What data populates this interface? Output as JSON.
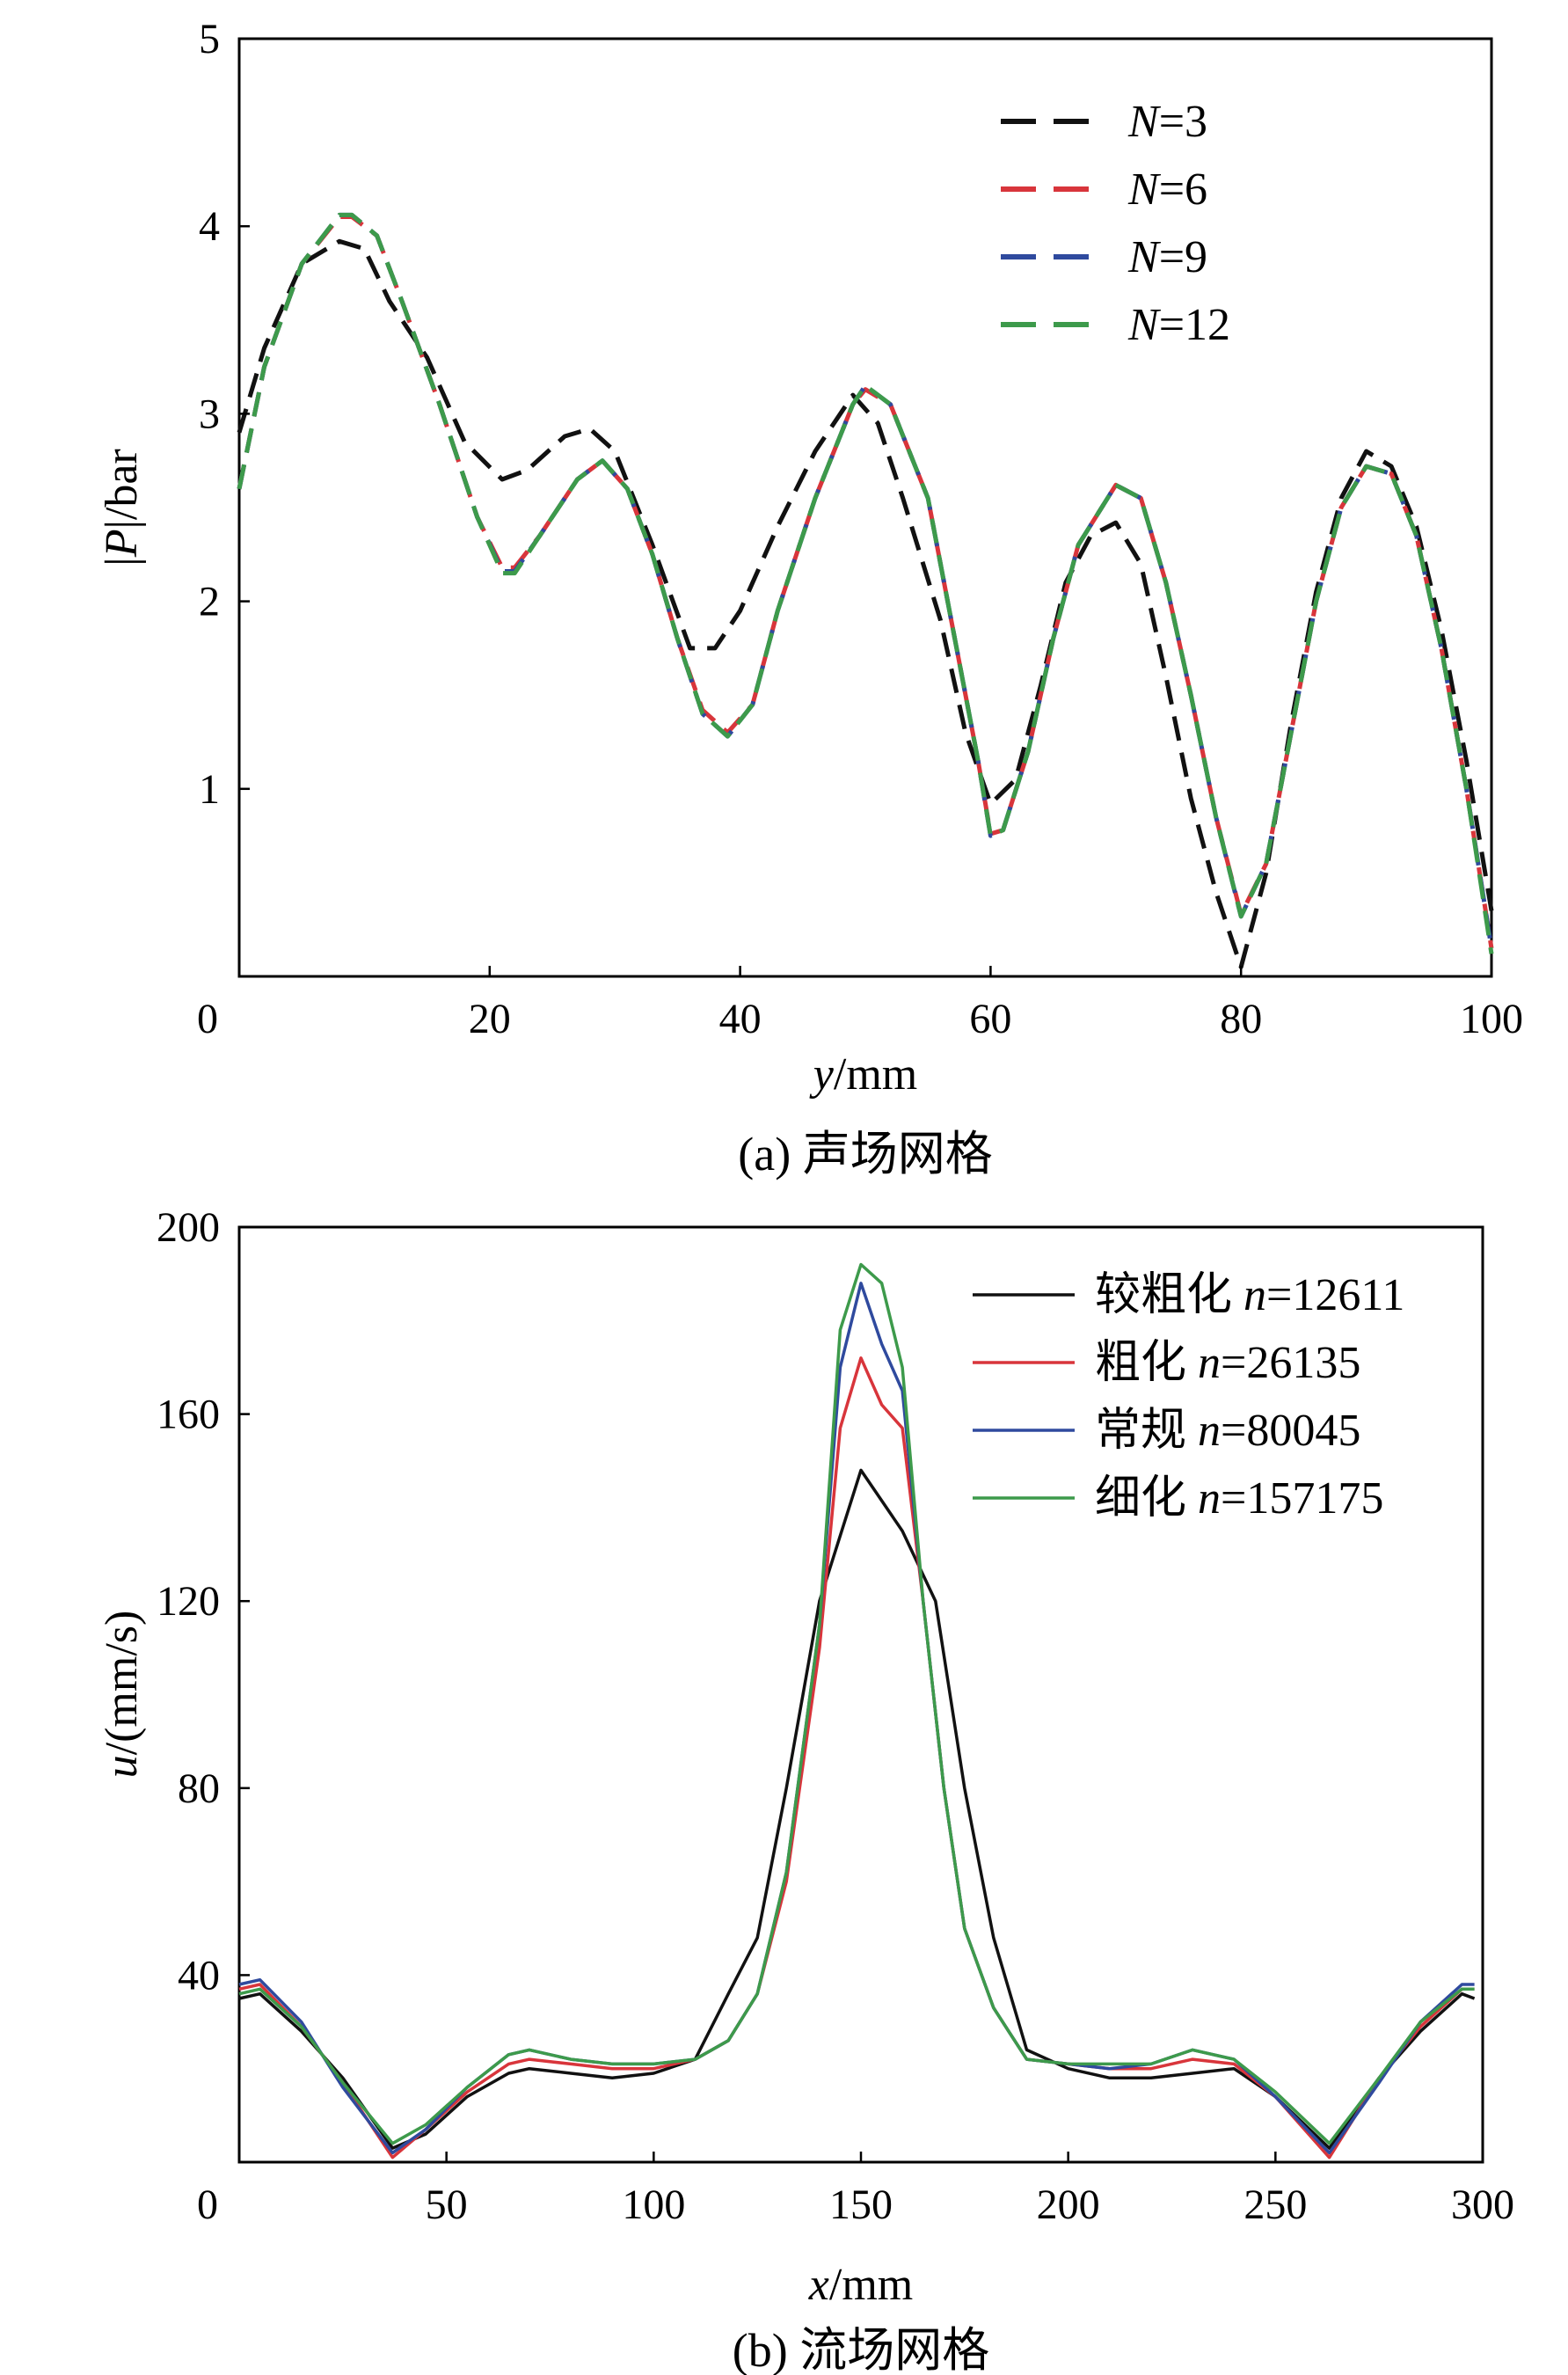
{
  "colors": {
    "black": "#111111",
    "red": "#d8353b",
    "blue": "#2f4a9e",
    "green": "#3d9a4b"
  },
  "chart_data": [
    {
      "type": "line",
      "caption": "(a) 声场网格",
      "ylabel_parts": [
        "|",
        "P",
        "|/bar"
      ],
      "xlabel_parts": [
        "y",
        "/mm"
      ],
      "xlim": [
        0,
        100
      ],
      "ylim": [
        0,
        5
      ],
      "xticks": [
        "0",
        "20",
        "40",
        "60",
        "80",
        "100"
      ],
      "yticks": [
        "1",
        "2",
        "3",
        "4",
        "5"
      ],
      "line_style": "dashed",
      "legend_position": "top-right",
      "series": [
        {
          "name_var": "N",
          "name_rest": "=3",
          "color_key": "black",
          "x": [
            0,
            2,
            5,
            8,
            10,
            12,
            15,
            18,
            21,
            23,
            26,
            28,
            30,
            33,
            36,
            38,
            40,
            43,
            46,
            49,
            51,
            53,
            56,
            58,
            60,
            62,
            64,
            66,
            68,
            70,
            72,
            74,
            76,
            78,
            80,
            82,
            84,
            86,
            88,
            90,
            92,
            94,
            96,
            98,
            100
          ],
          "y": [
            2.9,
            3.35,
            3.8,
            3.92,
            3.88,
            3.6,
            3.3,
            2.85,
            2.65,
            2.7,
            2.88,
            2.92,
            2.8,
            2.3,
            1.75,
            1.75,
            1.95,
            2.4,
            2.8,
            3.1,
            2.95,
            2.55,
            1.9,
            1.3,
            0.92,
            1.05,
            1.55,
            2.1,
            2.35,
            2.42,
            2.2,
            1.6,
            0.95,
            0.45,
            0.05,
            0.55,
            1.35,
            2.05,
            2.55,
            2.8,
            2.72,
            2.4,
            1.85,
            1.15,
            0.35
          ]
        },
        {
          "name_var": "N",
          "name_rest": "=6",
          "color_key": "red",
          "x": [
            0,
            2,
            5,
            8,
            9,
            11,
            13,
            16,
            19,
            21,
            22,
            24,
            27,
            29,
            31,
            33,
            35,
            37,
            39,
            41,
            43,
            46,
            49,
            50,
            52,
            55,
            57,
            59,
            60,
            61,
            63,
            65,
            67,
            70,
            72,
            74,
            76,
            78,
            80,
            82,
            84,
            86,
            88,
            90,
            92,
            94,
            96,
            98,
            100
          ],
          "y": [
            2.6,
            3.25,
            3.8,
            4.05,
            4.05,
            3.95,
            3.6,
            3.05,
            2.45,
            2.18,
            2.18,
            2.35,
            2.65,
            2.75,
            2.6,
            2.25,
            1.8,
            1.42,
            1.3,
            1.45,
            1.95,
            2.55,
            3.05,
            3.13,
            3.05,
            2.55,
            1.85,
            1.15,
            0.76,
            0.78,
            1.2,
            1.8,
            2.3,
            2.62,
            2.55,
            2.1,
            1.5,
            0.85,
            0.33,
            0.6,
            1.3,
            2.0,
            2.5,
            2.72,
            2.68,
            2.35,
            1.75,
            1.0,
            0.15
          ]
        },
        {
          "name_var": "N",
          "name_rest": "=9",
          "color_key": "blue",
          "x": [
            0,
            2,
            5,
            8,
            9,
            11,
            13,
            16,
            19,
            21,
            22,
            24,
            27,
            29,
            31,
            33,
            35,
            37,
            39,
            41,
            43,
            46,
            49,
            50,
            52,
            55,
            57,
            59,
            60,
            61,
            63,
            65,
            67,
            70,
            72,
            74,
            76,
            78,
            80,
            82,
            84,
            86,
            88,
            90,
            92,
            94,
            96,
            98,
            100
          ],
          "y": [
            2.6,
            3.25,
            3.8,
            4.06,
            4.06,
            3.95,
            3.6,
            3.05,
            2.45,
            2.16,
            2.16,
            2.35,
            2.65,
            2.75,
            2.6,
            2.25,
            1.8,
            1.4,
            1.28,
            1.45,
            1.95,
            2.55,
            3.05,
            3.15,
            3.05,
            2.55,
            1.85,
            1.15,
            0.75,
            0.78,
            1.2,
            1.8,
            2.3,
            2.62,
            2.55,
            2.1,
            1.5,
            0.85,
            0.32,
            0.6,
            1.3,
            2.0,
            2.5,
            2.72,
            2.68,
            2.35,
            1.75,
            1.0,
            0.15
          ]
        },
        {
          "name_var": "N",
          "name_rest": "=12",
          "color_key": "green",
          "x": [
            0,
            2,
            5,
            8,
            9,
            11,
            13,
            16,
            19,
            21,
            22,
            24,
            27,
            29,
            31,
            33,
            35,
            37,
            39,
            41,
            43,
            46,
            49,
            50,
            52,
            55,
            57,
            59,
            60,
            61,
            63,
            65,
            67,
            70,
            72,
            74,
            76,
            78,
            80,
            82,
            84,
            86,
            88,
            90,
            92,
            94,
            96,
            98,
            100
          ],
          "y": [
            2.6,
            3.25,
            3.8,
            4.06,
            4.06,
            3.95,
            3.6,
            3.05,
            2.45,
            2.15,
            2.15,
            2.35,
            2.65,
            2.75,
            2.6,
            2.25,
            1.8,
            1.4,
            1.28,
            1.45,
            1.95,
            2.55,
            3.05,
            3.15,
            3.05,
            2.55,
            1.85,
            1.15,
            0.75,
            0.78,
            1.2,
            1.8,
            2.3,
            2.62,
            2.55,
            2.1,
            1.5,
            0.85,
            0.32,
            0.6,
            1.3,
            2.0,
            2.5,
            2.72,
            2.68,
            2.35,
            1.75,
            1.0,
            0.12
          ]
        }
      ]
    },
    {
      "type": "line",
      "caption": "(b) 流场网格",
      "ylabel_parts": [
        "u",
        "/(mm/s)"
      ],
      "xlabel_parts": [
        "x",
        "/mm"
      ],
      "xlim": [
        0,
        300
      ],
      "ylim": [
        0,
        200
      ],
      "xticks": [
        "0",
        "50",
        "100",
        "150",
        "200",
        "250",
        "300"
      ],
      "yticks": [
        "40",
        "80",
        "120",
        "160",
        "200"
      ],
      "line_style": "solid",
      "legend_position": "top-right",
      "series": [
        {
          "name_zh": "较粗化",
          "name_var": "n",
          "name_rest": "=12611",
          "color_key": "black",
          "x": [
            0,
            5,
            15,
            25,
            37,
            45,
            55,
            65,
            70,
            80,
            90,
            100,
            110,
            118,
            125,
            132,
            140,
            150,
            160,
            168,
            175,
            182,
            190,
            200,
            210,
            220,
            230,
            240,
            250,
            263,
            275,
            285,
            295,
            298
          ],
          "y": [
            35,
            36,
            28,
            18,
            3,
            6,
            14,
            19,
            20,
            19,
            18,
            19,
            22,
            36,
            48,
            80,
            120,
            148,
            135,
            120,
            80,
            48,
            24,
            20,
            18,
            18,
            19,
            20,
            14,
            3,
            18,
            28,
            36,
            35
          ]
        },
        {
          "name_zh": "粗化",
          "name_var": "n",
          "name_rest": "=26135",
          "color_key": "red",
          "x": [
            0,
            5,
            15,
            25,
            37,
            45,
            55,
            65,
            70,
            80,
            90,
            100,
            110,
            118,
            125,
            132,
            140,
            145,
            150,
            155,
            160,
            165,
            170,
            175,
            182,
            190,
            200,
            210,
            220,
            230,
            240,
            250,
            263,
            275,
            285,
            295,
            298
          ],
          "y": [
            37,
            38,
            29,
            17,
            1,
            7,
            15,
            21,
            22,
            21,
            20,
            20,
            22,
            26,
            36,
            60,
            110,
            157,
            172,
            162,
            157,
            120,
            80,
            50,
            33,
            22,
            21,
            20,
            20,
            22,
            21,
            14,
            1,
            18,
            29,
            37,
            37
          ]
        },
        {
          "name_zh": "常规",
          "name_var": "n",
          "name_rest": "=80045",
          "color_key": "blue",
          "x": [
            0,
            5,
            15,
            25,
            37,
            45,
            55,
            65,
            70,
            80,
            90,
            100,
            110,
            118,
            125,
            132,
            140,
            145,
            150,
            155,
            160,
            165,
            170,
            175,
            182,
            190,
            200,
            210,
            220,
            230,
            240,
            250,
            263,
            275,
            285,
            295,
            298
          ],
          "y": [
            38,
            39,
            30,
            16,
            2,
            7,
            16,
            23,
            24,
            22,
            21,
            21,
            22,
            26,
            36,
            62,
            115,
            170,
            188,
            175,
            165,
            120,
            80,
            50,
            33,
            22,
            21,
            20,
            21,
            24,
            22,
            14,
            2,
            17,
            30,
            38,
            38
          ]
        },
        {
          "name_zh": "细化",
          "name_var": "n",
          "name_rest": "=157175",
          "color_key": "green",
          "x": [
            0,
            5,
            15,
            25,
            37,
            45,
            55,
            65,
            70,
            80,
            90,
            100,
            110,
            118,
            125,
            132,
            140,
            145,
            150,
            155,
            160,
            165,
            170,
            175,
            182,
            190,
            200,
            210,
            220,
            230,
            240,
            250,
            263,
            275,
            285,
            295,
            298
          ],
          "y": [
            36,
            37,
            29,
            17,
            4,
            8,
            16,
            23,
            24,
            22,
            21,
            21,
            22,
            26,
            36,
            62,
            115,
            178,
            192,
            188,
            170,
            120,
            80,
            50,
            33,
            22,
            21,
            21,
            21,
            24,
            22,
            15,
            4,
            18,
            30,
            37,
            37
          ]
        }
      ]
    }
  ]
}
